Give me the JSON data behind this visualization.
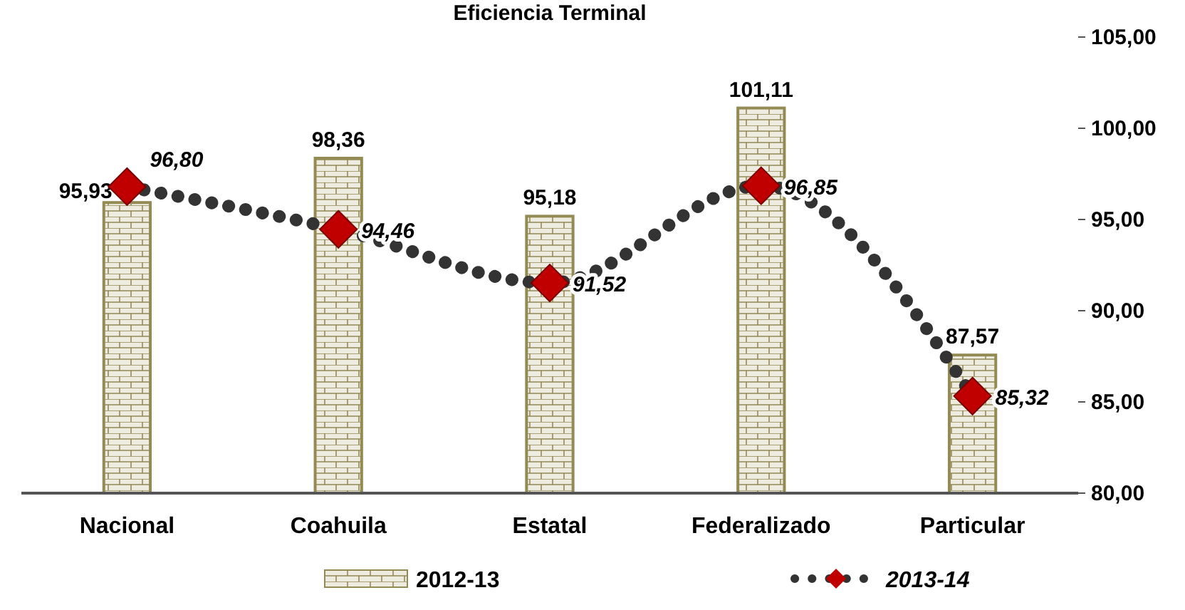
{
  "chart_data": {
    "type": "bar",
    "title": "Eficiencia Terminal",
    "categories": [
      "Nacional",
      "Coahuila",
      "Estatal",
      "Federalizado",
      "Particular"
    ],
    "series": [
      {
        "name": "2012-13",
        "color": "#948a54",
        "values": [
          95.93,
          98.36,
          95.18,
          101.11,
          87.57
        ],
        "value_labels": [
          "95,93",
          "98,36",
          "95,18",
          "101,11",
          "87,57"
        ]
      },
      {
        "name": "2013-14",
        "type": "line",
        "color": "#c00000",
        "marker": "diamond",
        "line_style": "dotted",
        "values": [
          96.8,
          94.46,
          91.52,
          96.85,
          85.32
        ],
        "value_labels": [
          "96,80",
          "94,46",
          "91,52",
          "96,85",
          "85,32"
        ]
      }
    ],
    "ylim": [
      80,
      105
    ],
    "yticks": [
      {
        "value": 80,
        "label": "80,00"
      },
      {
        "value": 85,
        "label": "85,00"
      },
      {
        "value": 90,
        "label": "90,00"
      },
      {
        "value": 95,
        "label": "95,00"
      },
      {
        "value": 100,
        "label": "100,00"
      },
      {
        "value": 105,
        "label": "105,00"
      }
    ],
    "grid": false,
    "legend": "bottom"
  }
}
